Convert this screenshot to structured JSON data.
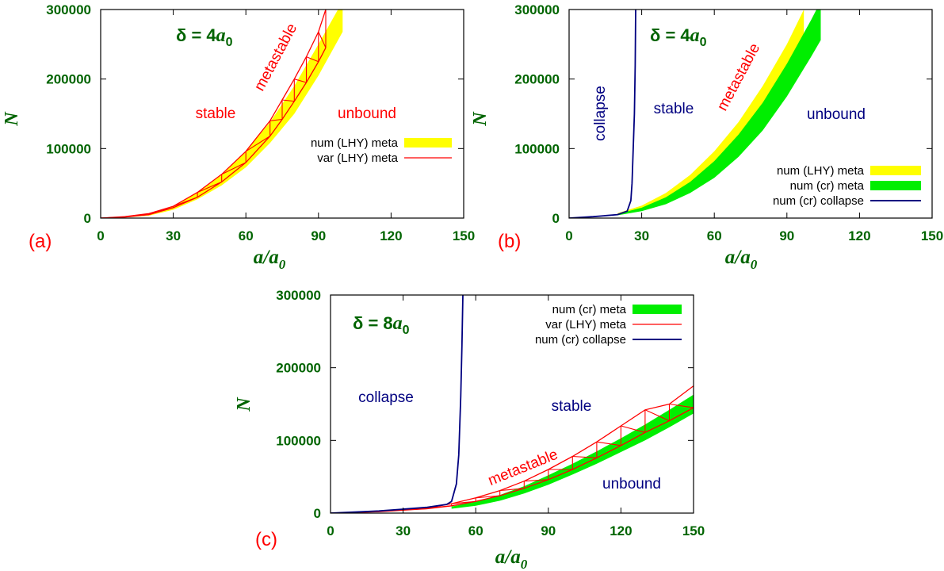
{
  "colors": {
    "axis_text": "#006400",
    "red": "#ff0000",
    "navy": "#000080",
    "yellow": "#ffff00",
    "green": "#00ee00"
  },
  "chart_data": [
    {
      "type": "line",
      "panel_label": "(a)",
      "xlabel": "a/a0",
      "ylabel": "N",
      "xlim": [
        0,
        150
      ],
      "ylim": [
        0,
        300000
      ],
      "xticks": [
        0,
        30,
        60,
        90,
        120,
        150
      ],
      "yticks": [
        0,
        100000,
        200000,
        300000
      ],
      "delta": {
        "prefix": "δ = 4",
        "symbol": "a",
        "sub": "0"
      },
      "annotations": [
        {
          "text": "metastable",
          "color": "red"
        },
        {
          "text": "stable",
          "color": "red"
        },
        {
          "text": "unbound",
          "color": "red"
        }
      ],
      "legend": [
        {
          "label": "num (LHY) meta",
          "style": "band-yellow"
        },
        {
          "label": "var (LHY) meta",
          "style": "line-red"
        }
      ],
      "series": [
        {
          "name": "num (LHY) meta",
          "kind": "band",
          "color": "yellow",
          "x": [
            0,
            10,
            20,
            30,
            40,
            50,
            60,
            70,
            80,
            90,
            100
          ],
          "lower": [
            0,
            800,
            3500,
            12000,
            27000,
            47000,
            73000,
            108000,
            150000,
            205000,
            268000
          ],
          "upper": [
            0,
            1500,
            5500,
            17000,
            36000,
            62000,
            96000,
            138000,
            190000,
            250000,
            312000
          ]
        },
        {
          "name": "var (LHY) meta",
          "kind": "zigzag",
          "color": "red",
          "x": [
            0,
            10,
            20,
            30,
            40,
            50,
            60,
            70,
            75,
            80,
            85,
            90,
            93
          ],
          "lower": [
            0,
            1500,
            5000,
            15000,
            30000,
            52000,
            80000,
            118000,
            142000,
            168000,
            195000,
            225000,
            245000
          ],
          "upper": [
            0,
            2000,
            6500,
            17000,
            37000,
            63000,
            96000,
            140000,
            170000,
            200000,
            232000,
            268000,
            300000
          ]
        }
      ]
    },
    {
      "type": "line",
      "panel_label": "(b)",
      "xlabel": "a/a0",
      "ylabel": "N",
      "xlim": [
        0,
        150
      ],
      "ylim": [
        0,
        300000
      ],
      "xticks": [
        0,
        30,
        60,
        90,
        120,
        150
      ],
      "yticks": [
        0,
        100000,
        200000,
        300000
      ],
      "delta": {
        "prefix": "δ = 4",
        "symbol": "a",
        "sub": "0"
      },
      "annotations": [
        {
          "text": "collapse",
          "color": "navy"
        },
        {
          "text": "stable",
          "color": "navy"
        },
        {
          "text": "metastable",
          "color": "red"
        },
        {
          "text": "unbound",
          "color": "navy"
        }
      ],
      "legend": [
        {
          "label": "num (LHY) meta",
          "style": "band-yellow"
        },
        {
          "label": "num (cr) meta",
          "style": "band-green"
        },
        {
          "label": "num (cr) collapse",
          "style": "line-navy"
        }
      ],
      "series": [
        {
          "name": "num (LHY) meta",
          "kind": "band",
          "color": "yellow",
          "x": [
            20,
            30,
            40,
            50,
            60,
            70,
            80,
            90,
            97
          ],
          "lower": [
            5000,
            14000,
            28000,
            48000,
            75000,
            110000,
            155000,
            210000,
            258000
          ],
          "upper": [
            7000,
            18000,
            36000,
            62000,
            96000,
            138000,
            190000,
            250000,
            300000
          ]
        },
        {
          "name": "num (cr) meta",
          "kind": "band",
          "color": "green",
          "x": [
            20,
            30,
            40,
            50,
            60,
            70,
            80,
            90,
            100,
            104
          ],
          "lower": [
            4000,
            10000,
            20000,
            36000,
            58000,
            88000,
            126000,
            175000,
            232000,
            256000
          ],
          "upper": [
            6000,
            15000,
            30000,
            52000,
            82000,
            120000,
            166000,
            222000,
            285000,
            312000
          ]
        },
        {
          "name": "num (cr) collapse",
          "kind": "line",
          "color": "navy",
          "x": [
            0,
            10,
            20,
            24,
            25.5,
            26,
            26.5,
            27,
            27.3,
            27.5
          ],
          "y": [
            0,
            2000,
            5000,
            10000,
            25000,
            50000,
            100000,
            150000,
            220000,
            300000
          ]
        }
      ]
    },
    {
      "type": "line",
      "panel_label": "(c)",
      "xlabel": "a/a0",
      "ylabel": "N",
      "xlim": [
        0,
        150
      ],
      "ylim": [
        0,
        300000
      ],
      "xticks": [
        0,
        30,
        60,
        90,
        120,
        150
      ],
      "yticks": [
        0,
        100000,
        200000,
        300000
      ],
      "delta": {
        "prefix": "δ = 8",
        "symbol": "a",
        "sub": "0"
      },
      "annotations": [
        {
          "text": "collapse",
          "color": "navy"
        },
        {
          "text": "stable",
          "color": "navy"
        },
        {
          "text": "metastable",
          "color": "red"
        },
        {
          "text": "unbound",
          "color": "navy"
        }
      ],
      "legend": [
        {
          "label": "num (cr) meta",
          "style": "band-green"
        },
        {
          "label": "var (LHY) meta",
          "style": "line-red"
        },
        {
          "label": "num (cr) collapse",
          "style": "line-navy"
        }
      ],
      "series": [
        {
          "name": "num (cr) meta",
          "kind": "band",
          "color": "green",
          "x": [
            50,
            60,
            70,
            80,
            90,
            100,
            110,
            120,
            130,
            140,
            150
          ],
          "lower": [
            6000,
            10000,
            17000,
            27000,
            39000,
            53000,
            68000,
            84000,
            100000,
            118000,
            137000
          ],
          "upper": [
            9000,
            16000,
            25000,
            37000,
            52000,
            68000,
            85000,
            103000,
            122000,
            142000,
            163000
          ]
        },
        {
          "name": "var (LHY) meta",
          "kind": "zigzag",
          "color": "red",
          "x": [
            0,
            20,
            40,
            50,
            60,
            70,
            80,
            90,
            100,
            110,
            120,
            130,
            140,
            150
          ],
          "lower": [
            0,
            2000,
            6000,
            10000,
            16000,
            24000,
            34000,
            46000,
            60000,
            76000,
            93000,
            111000,
            127000,
            145000
          ],
          "upper": [
            0,
            2500,
            7000,
            13000,
            21000,
            31000,
            44000,
            60000,
            78000,
            98000,
            120000,
            142000,
            150000,
            175000
          ]
        },
        {
          "name": "num (cr) collapse",
          "kind": "line",
          "color": "navy",
          "x": [
            0,
            20,
            40,
            48,
            50,
            52,
            53,
            53.8,
            54.3,
            54.7
          ],
          "y": [
            0,
            3000,
            8000,
            12000,
            16000,
            40000,
            80000,
            160000,
            230000,
            300000
          ]
        }
      ]
    }
  ]
}
